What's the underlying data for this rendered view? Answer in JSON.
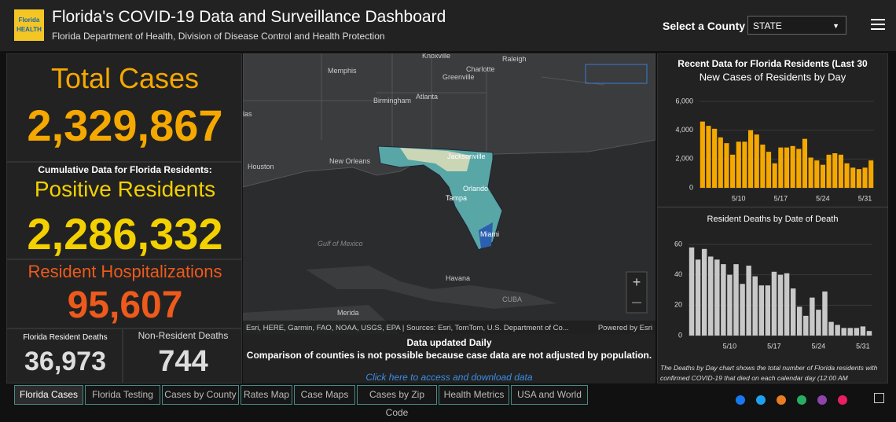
{
  "header": {
    "title": "Florida's COVID-19 Data and Surveillance Dashboard",
    "subtitle": "Florida Department of Health, Division of Disease Control and Health Protection",
    "logo": "Florida HEALTH",
    "select_label": "Select a County",
    "select_value": "STATE"
  },
  "left": {
    "total_cases_label": "Total Cases",
    "total_cases": "2,329,867",
    "cumulative_note": "Cumulative Data for Florida Residents:",
    "positive_label": "Positive Residents",
    "positive": "2,286,332",
    "hosp_label": "Resident Hospitalizations",
    "hosp": "95,607",
    "res_deaths_label": "Florida Resident Deaths",
    "res_deaths": "36,973",
    "nonres_deaths_label": "Non-Resident Deaths",
    "nonres_deaths": "744"
  },
  "map": {
    "labels": [
      "Knoxville",
      "Raleigh",
      "Memphis",
      "Charlotte",
      "Greenville",
      "Birmingham",
      "Atlanta",
      "las",
      "Houston",
      "New Orleans",
      "Jacksonville",
      "Orlando",
      "Tampa",
      "Miami",
      "Gulf of Mexico",
      "Havana",
      "CUBA",
      "Merida"
    ],
    "attribution": "Esri, HERE, Garmin, FAO, NOAA, USGS, EPA | Sources: Esri, TomTom, U.S. Department of Co...",
    "powered": "Powered by Esri",
    "zoom_in": "+",
    "zoom_out": "—"
  },
  "notice": {
    "line1": "Data updated Daily",
    "line2": "Comparison of counties is not possible because case data are not adjusted by population.",
    "link": "Click here to access and download data"
  },
  "right": {
    "header": "Recent Data for Florida Residents (Last 30",
    "footnote": "The Deaths by Day chart shows the total number of Florida residents with confirmed COVID-19 that died on each calendar day (12:00 AM"
  },
  "cases_chart": {
    "type": "bar",
    "title": "New Cases of Residents by Day",
    "color": "#f5a800",
    "categories": [
      null,
      null,
      null,
      null,
      null,
      null,
      "5/10",
      null,
      null,
      null,
      null,
      null,
      null,
      "5/17",
      null,
      null,
      null,
      null,
      null,
      null,
      "5/24",
      null,
      null,
      null,
      null,
      null,
      null,
      "5/31",
      null
    ],
    "values": [
      4600,
      4300,
      4100,
      3500,
      3100,
      2300,
      3200,
      3200,
      4000,
      3700,
      3000,
      2500,
      1700,
      2800,
      2800,
      2900,
      2700,
      3400,
      2100,
      1900,
      1600,
      2300,
      2400,
      2300,
      1700,
      1400,
      1300,
      1400,
      1900
    ],
    "ylim": [
      0,
      6000
    ],
    "yticks": [
      0,
      {
        "value": 2000,
        "label": "2,000"
      },
      {
        "value": 4000,
        "label": "4,000"
      },
      {
        "value": 6000,
        "label": "6,000"
      }
    ]
  },
  "deaths_chart": {
    "type": "bar",
    "title": "Resident Deaths by Date of Death",
    "color": "#c8c8c8",
    "categories": [
      null,
      null,
      null,
      null,
      null,
      null,
      "5/10",
      null,
      null,
      null,
      null,
      null,
      null,
      "5/17",
      null,
      null,
      null,
      null,
      null,
      null,
      "5/24",
      null,
      null,
      null,
      null,
      null,
      null,
      "5/31",
      null
    ],
    "values": [
      58,
      50,
      57,
      52,
      50,
      47,
      40,
      47,
      34,
      46,
      39,
      33,
      33,
      42,
      40,
      41,
      31,
      19,
      13,
      25,
      17,
      29,
      9,
      7,
      5,
      5,
      5,
      6,
      3
    ],
    "ylim": [
      0,
      60
    ],
    "yticks": [
      0,
      20,
      40,
      60
    ]
  },
  "tabs": [
    "Florida Cases",
    "Florida Testing",
    "Cases by County",
    "Rates Map",
    "Case Maps",
    "Cases by Zip Code",
    "Health Metrics",
    "USA and World"
  ]
}
